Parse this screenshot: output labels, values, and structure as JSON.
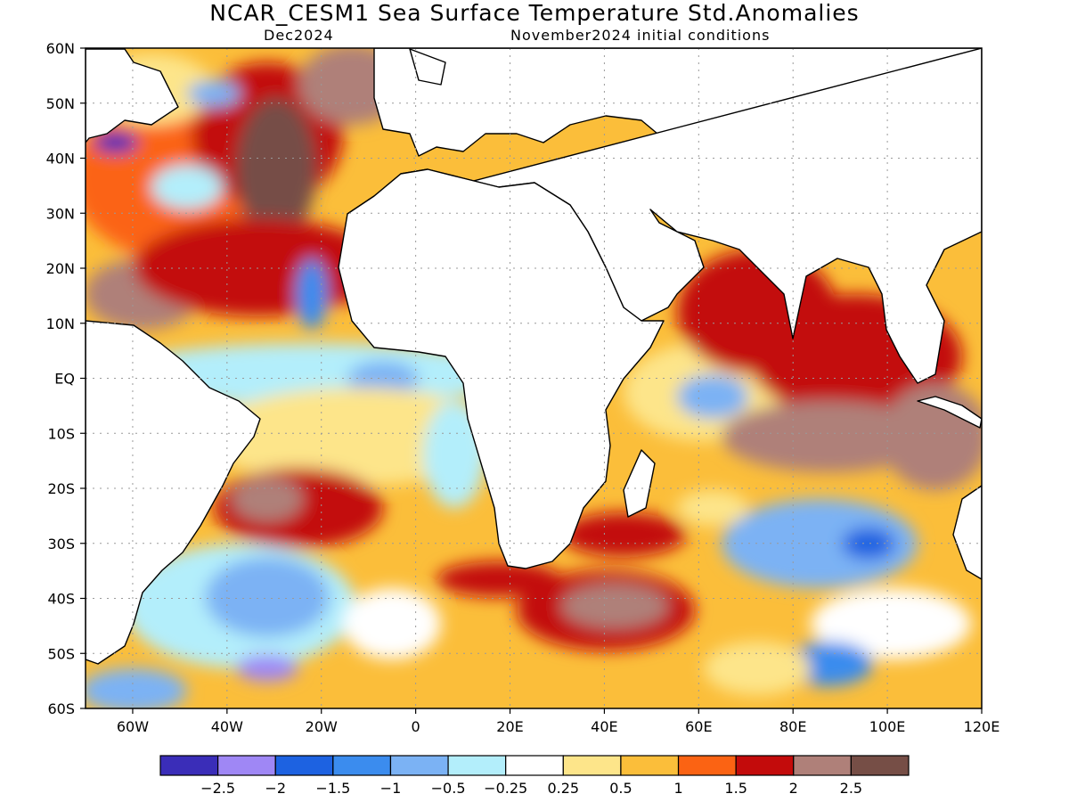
{
  "title": "NCAR_CESM1 Sea Surface Temperature Std.Anomalies",
  "valid_month": "Dec2024",
  "init_label": "November2024 initial conditions",
  "map": {
    "lon_range": [
      -70,
      120
    ],
    "lat_range": [
      -60,
      60
    ],
    "lon_ticks": [
      "60W",
      "40W",
      "20W",
      "0",
      "20E",
      "40E",
      "60E",
      "80E",
      "100E",
      "120E"
    ],
    "lat_ticks": [
      "60N",
      "50N",
      "40N",
      "30N",
      "20N",
      "10N",
      "EQ",
      "10S",
      "20S",
      "30S",
      "40S",
      "50S",
      "60S"
    ],
    "grid": "dotted",
    "land_color": "#ffffff",
    "coast_color": "#000000"
  },
  "colorbar": {
    "colors": [
      "#3a2db8",
      "#9f87f5",
      "#1d62e1",
      "#3b8cee",
      "#7bb2f4",
      "#b3eefb",
      "#ffffff",
      "#fde58a",
      "#fbbe3a",
      "#fb6313",
      "#c30b0b",
      "#af8079",
      "#764e46"
    ],
    "labels": [
      "−2.5",
      "−2",
      "−1.5",
      "−1",
      "−0.5",
      "−0.25",
      "0.25",
      "0.5",
      "1",
      "1.5",
      "2",
      "2.5"
    ]
  }
}
